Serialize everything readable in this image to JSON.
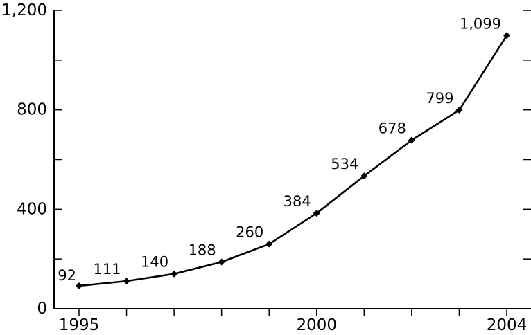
{
  "chart_data": {
    "type": "line",
    "title": "",
    "xlabel": "",
    "ylabel": "",
    "x": [
      1995,
      1996,
      1997,
      1998,
      1999,
      2000,
      2001,
      2002,
      2003,
      2004
    ],
    "series": [
      {
        "values": [
          92,
          111,
          140,
          188,
          260,
          384,
          534,
          678,
          799,
          1099
        ],
        "labels": [
          "92",
          "111",
          "140",
          "188",
          "260",
          "384",
          "534",
          "678",
          "799",
          "1,099"
        ]
      }
    ],
    "xlim": [
      1995,
      2004
    ],
    "ylim": [
      0,
      1200
    ],
    "y_ticks": [
      0,
      200,
      400,
      600,
      800,
      1000,
      1200
    ],
    "y_tick_labels": [
      "0",
      "",
      "400",
      "",
      "800",
      "",
      "1,200"
    ],
    "x_ticks": [
      1995,
      1996,
      1997,
      1998,
      1999,
      2000,
      2001,
      2002,
      2003,
      2004
    ],
    "x_tick_labels": [
      "1995",
      "",
      "",
      "",
      "",
      "2000",
      "",
      "",
      "",
      "2004"
    ],
    "grid": false,
    "legend": "none",
    "line_color": "#000000",
    "marker": "diamond"
  }
}
